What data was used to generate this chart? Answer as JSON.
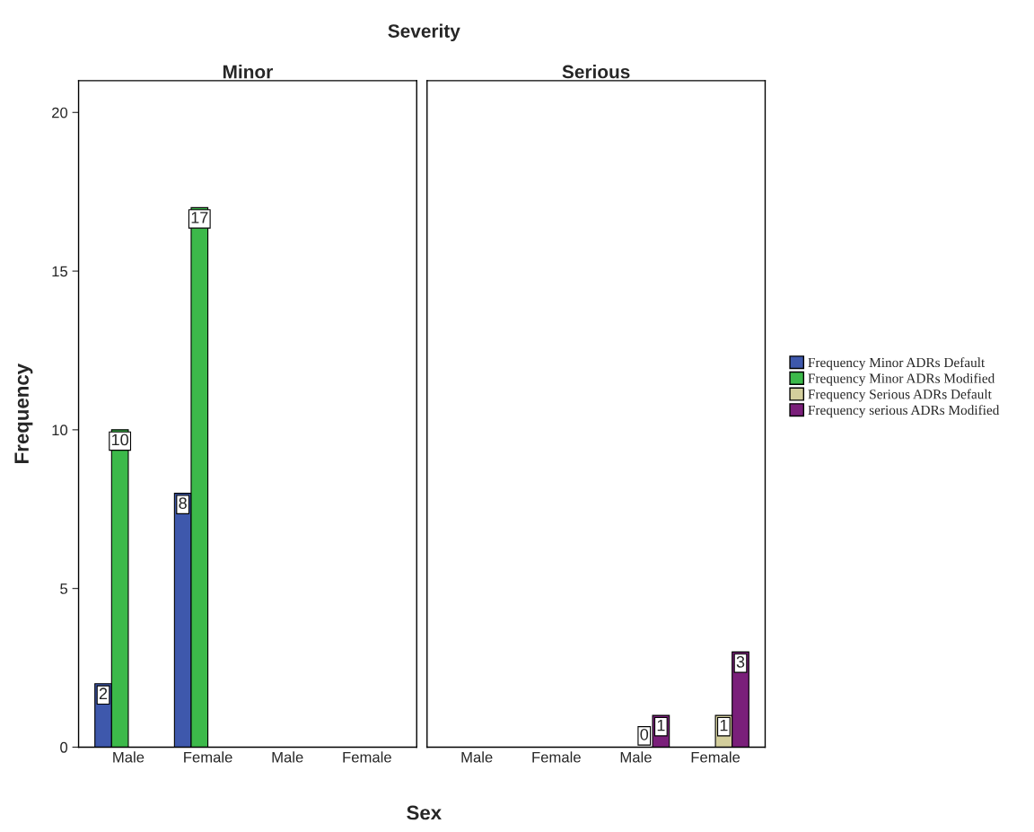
{
  "chart_data": [
    {
      "type": "bar",
      "title": "Minor",
      "xlabel": "Sex",
      "ylabel": "Frequency",
      "annotations": [
        "Severity"
      ],
      "categories": [
        "Male",
        "Female",
        "Male",
        "Female"
      ],
      "ylim": [
        0,
        21
      ],
      "yticks": [
        0,
        5,
        10,
        15,
        20
      ],
      "data_labels": true,
      "legend": "right",
      "series": [
        {
          "name": "Frequency Minor ADRs Default",
          "color": "#3e58ac",
          "values": [
            2,
            8,
            null,
            null
          ]
        },
        {
          "name": "Frequency Minor ADRs Modified",
          "color": "#3cb94a",
          "values": [
            10,
            17,
            null,
            null
          ]
        },
        {
          "name": "Frequency Serious ADRs Default",
          "color": "#d3ce9c",
          "values": [
            null,
            null,
            null,
            null
          ]
        },
        {
          "name": "Frequency serious ADRs Modified",
          "color": "#7a1f7a",
          "values": [
            null,
            null,
            null,
            null
          ]
        }
      ]
    },
    {
      "type": "bar",
      "title": "Serious",
      "categories": [
        "Male",
        "Female",
        "Male",
        "Female"
      ],
      "ylim": [
        0,
        21
      ],
      "tick_labels": "x",
      "data_labels": true,
      "series": [
        {
          "color": "#3e58ac",
          "values": [
            null,
            null,
            null,
            null
          ]
        },
        {
          "color": "#3cb94a",
          "values": [
            null,
            null,
            null,
            null
          ]
        },
        {
          "color": "#d3ce9c",
          "values": [
            null,
            null,
            0,
            1
          ]
        },
        {
          "color": "#7a1f7a",
          "values": [
            null,
            null,
            1,
            3
          ]
        }
      ]
    }
  ]
}
